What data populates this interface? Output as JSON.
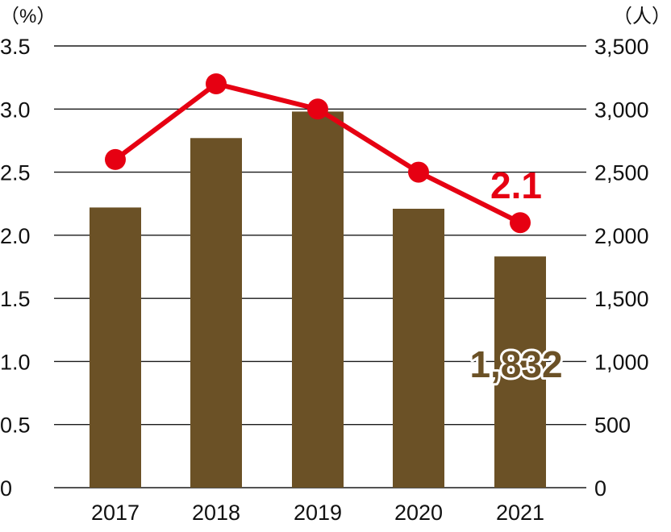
{
  "chart_data": {
    "type": "bar",
    "categories": [
      "2017",
      "2018",
      "2019",
      "2020",
      "2021"
    ],
    "series": [
      {
        "kind": "bar",
        "axis": "right",
        "values": [
          2220,
          2770,
          2980,
          2210,
          1832
        ],
        "color": "#6b5126"
      },
      {
        "kind": "line",
        "axis": "left",
        "values": [
          2.6,
          3.2,
          3.0,
          2.5,
          2.1
        ],
        "color": "#e60012"
      }
    ],
    "left_axis": {
      "unit": "（%）",
      "ylim": [
        0,
        3.5
      ],
      "ticks": [
        "0",
        "0.5",
        "1.0",
        "1.5",
        "2.0",
        "2.5",
        "3.0",
        "3.5"
      ]
    },
    "right_axis": {
      "unit": "（人）",
      "ylim": [
        0,
        3500
      ],
      "ticks": [
        "0",
        "500",
        "1,000",
        "1,500",
        "2,000",
        "2,500",
        "3,000",
        "3,500"
      ]
    },
    "annotations": {
      "bar_last": "1,832",
      "line_last": "2.1"
    },
    "grid": true,
    "legend": "none"
  }
}
